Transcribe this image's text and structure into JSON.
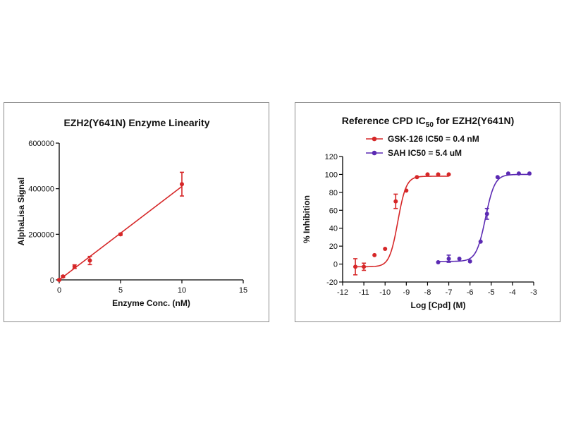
{
  "chart_data": [
    {
      "type": "line",
      "title": "EZH2(Y641N) Enzyme Linearity",
      "xlabel": "Enzyme Conc. (nM)",
      "ylabel": "AlphaLisa Signal",
      "xlim": [
        0,
        15
      ],
      "ylim": [
        0,
        600000
      ],
      "xticks": [
        0,
        5,
        10,
        15
      ],
      "xtick_labels": [
        "0",
        "5",
        "10",
        "15"
      ],
      "yticks": [
        0,
        200000,
        400000,
        600000
      ],
      "ytick_labels": [
        "0",
        "200000",
        "400000",
        "600000"
      ],
      "grid": false,
      "color": "#d62728",
      "series": [
        {
          "points": [
            {
              "x": 0,
              "y": 0,
              "err": 3000
            },
            {
              "x": 0.31,
              "y": 15000,
              "err": 4000
            },
            {
              "x": 1.25,
              "y": 58000,
              "err": 8000
            },
            {
              "x": 2.5,
              "y": 85000,
              "err": 18000
            },
            {
              "x": 5,
              "y": 200000,
              "err": 4000
            },
            {
              "x": 10,
              "y": 420000,
              "err": 52000
            }
          ],
          "fit": [
            [
              0,
              0
            ],
            [
              10,
              410000
            ]
          ]
        }
      ]
    },
    {
      "type": "scatter",
      "title": "Reference CPD IC",
      "title_subscript": "50",
      "title_suffix": " for EZH2(Y641N)",
      "xlabel": "Log [Cpd] (M)",
      "ylabel": "% Inhibition",
      "xlim": [
        -12,
        -3
      ],
      "ylim": [
        -20,
        120
      ],
      "xticks": [
        -12,
        -11,
        -10,
        -9,
        -8,
        -7,
        -6,
        -5,
        -4,
        -3
      ],
      "xtick_labels": [
        "-12",
        "-11",
        "-10",
        "-9",
        "-8",
        "-7",
        "-6",
        "-5",
        "-4",
        "-3"
      ],
      "yticks": [
        -20,
        0,
        20,
        40,
        60,
        80,
        100,
        120
      ],
      "ytick_labels": [
        "-20",
        "0",
        "20",
        "40",
        "60",
        "80",
        "100",
        "120"
      ],
      "grid": false,
      "legend": "top",
      "series": [
        {
          "name": "GSK-126 IC50 = 0.4 nM",
          "color": "#d62728",
          "points": [
            {
              "x": -11.4,
              "y": -3,
              "err": 9
            },
            {
              "x": -11.0,
              "y": -3,
              "err": 4
            },
            {
              "x": -10.5,
              "y": 10,
              "err": 2
            },
            {
              "x": -10.0,
              "y": 17,
              "err": 2
            },
            {
              "x": -9.5,
              "y": 70,
              "err": 8
            },
            {
              "x": -9.0,
              "y": 82,
              "err": 2
            },
            {
              "x": -8.5,
              "y": 97,
              "err": 2
            },
            {
              "x": -8.0,
              "y": 100,
              "err": 1
            },
            {
              "x": -7.5,
              "y": 100,
              "err": 1
            },
            {
              "x": -7.0,
              "y": 100,
              "err": 1
            }
          ],
          "fit": {
            "bottom": -3,
            "top": 98,
            "logIC50": -9.4,
            "hill": 2.2,
            "xrange": [
              -11.5,
              -7.0
            ]
          }
        },
        {
          "name": "SAH IC50 = 5.4 uM",
          "color": "#5b2ab3",
          "points": [
            {
              "x": -7.5,
              "y": 2,
              "err": 2
            },
            {
              "x": -7.0,
              "y": 6,
              "err": 4
            },
            {
              "x": -6.5,
              "y": 6,
              "err": 2
            },
            {
              "x": -6.0,
              "y": 3,
              "err": 2
            },
            {
              "x": -5.5,
              "y": 25,
              "err": 2
            },
            {
              "x": -5.2,
              "y": 56,
              "err": 6
            },
            {
              "x": -4.7,
              "y": 97,
              "err": 2
            },
            {
              "x": -4.2,
              "y": 101,
              "err": 1
            },
            {
              "x": -3.7,
              "y": 101,
              "err": 1
            },
            {
              "x": -3.2,
              "y": 101,
              "err": 1
            }
          ],
          "fit": {
            "bottom": 3,
            "top": 100,
            "logIC50": -5.27,
            "hill": 2.0,
            "xrange": [
              -7.5,
              -3.2
            ]
          }
        }
      ]
    }
  ]
}
